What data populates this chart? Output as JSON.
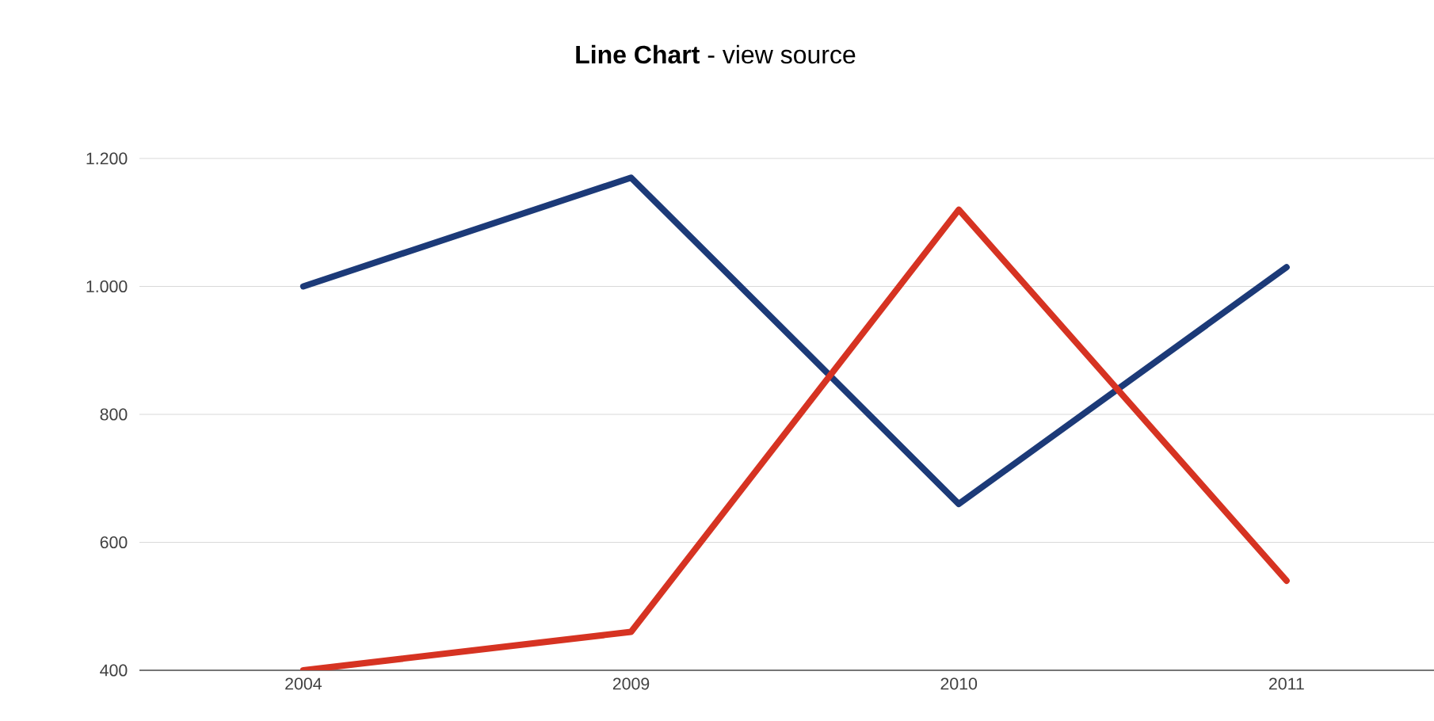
{
  "chart_data": {
    "type": "line",
    "title": "**Line Chart** - view source",
    "categories": [
      "2004",
      "2009",
      "2010",
      "2011"
    ],
    "series": [
      {
        "color": "#1c3a78",
        "values": [
          1000,
          1170,
          660,
          1030
        ]
      },
      {
        "color": "#d63322",
        "values": [
          400,
          460,
          1120,
          540
        ]
      }
    ],
    "ylim": [
      400,
      1200
    ],
    "yticks": [
      {
        "value": 400,
        "label": "400"
      },
      {
        "value": 600,
        "label": "600"
      },
      {
        "value": 800,
        "label": "800"
      },
      {
        "value": 1000,
        "label": "1.000"
      },
      {
        "value": 1200,
        "label": "1.200"
      }
    ],
    "grid": "y",
    "marker": "none",
    "line_style": "solid"
  }
}
